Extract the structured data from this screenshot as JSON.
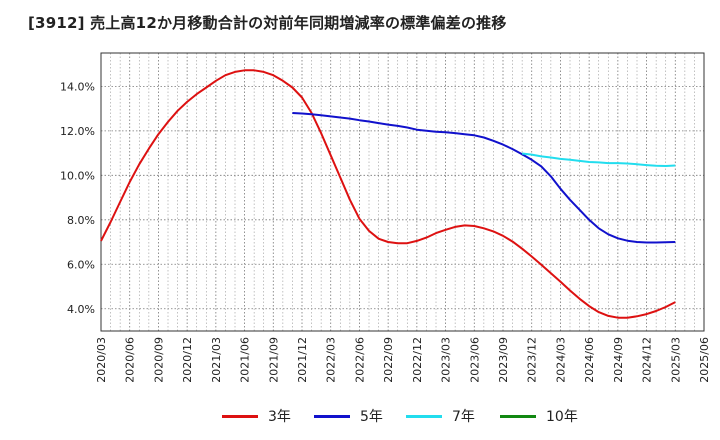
{
  "title": "[3912]  売上高12か月移動合計の対前年同期増減率の標準偏差の推移",
  "chart_data": {
    "type": "line",
    "title": "[3912]  売上高12か月移動合計の対前年同期増減率の標準偏差の推移",
    "xlabel": "",
    "ylabel": "",
    "x_ticks": [
      "2020/03",
      "2020/06",
      "2020/09",
      "2020/12",
      "2021/03",
      "2021/06",
      "2021/09",
      "2021/12",
      "2022/03",
      "2022/06",
      "2022/09",
      "2022/12",
      "2023/03",
      "2023/06",
      "2023/09",
      "2023/12",
      "2024/03",
      "2024/06",
      "2024/09",
      "2024/12",
      "2025/03",
      "2025/06"
    ],
    "y_ticks": [
      "4.0%",
      "6.0%",
      "8.0%",
      "10.0%",
      "12.0%",
      "14.0%"
    ],
    "ylim": [
      3.0,
      15.5
    ],
    "grid": true,
    "legend_position": "bottom",
    "series": [
      {
        "name": "3年",
        "color": "#dd1111",
        "x": [
          "2020/03",
          "2020/04",
          "2020/05",
          "2020/06",
          "2020/07",
          "2020/08",
          "2020/09",
          "2020/10",
          "2020/11",
          "2020/12",
          "2021/01",
          "2021/02",
          "2021/03",
          "2021/04",
          "2021/05",
          "2021/06",
          "2021/07",
          "2021/08",
          "2021/09",
          "2021/10",
          "2021/11",
          "2021/12",
          "2022/01",
          "2022/02",
          "2022/03",
          "2022/04",
          "2022/05",
          "2022/06",
          "2022/07",
          "2022/08",
          "2022/09",
          "2022/10",
          "2022/11",
          "2022/12",
          "2023/01",
          "2023/02",
          "2023/03",
          "2023/04",
          "2023/05",
          "2023/06",
          "2023/07",
          "2023/08",
          "2023/09",
          "2023/10",
          "2023/11",
          "2023/12",
          "2024/01",
          "2024/02",
          "2024/03",
          "2024/04",
          "2024/05",
          "2024/06",
          "2024/07",
          "2024/08",
          "2024/09",
          "2024/10",
          "2024/11",
          "2024/12",
          "2025/01",
          "2025/02",
          "2025/03"
        ],
        "values": [
          7.05,
          7.9,
          8.8,
          9.7,
          10.5,
          11.2,
          11.85,
          12.4,
          12.9,
          13.3,
          13.65,
          13.95,
          14.25,
          14.5,
          14.65,
          14.72,
          14.72,
          14.65,
          14.5,
          14.25,
          13.95,
          13.5,
          12.8,
          11.9,
          10.9,
          9.9,
          8.9,
          8.05,
          7.5,
          7.15,
          7.0,
          6.95,
          6.95,
          7.05,
          7.2,
          7.4,
          7.55,
          7.68,
          7.75,
          7.72,
          7.62,
          7.48,
          7.28,
          7.02,
          6.7,
          6.35,
          5.98,
          5.6,
          5.22,
          4.82,
          4.45,
          4.12,
          3.85,
          3.68,
          3.6,
          3.6,
          3.66,
          3.76,
          3.9,
          4.08,
          4.3
        ]
      },
      {
        "name": "5年",
        "color": "#1111cc",
        "x": [
          "2021/11",
          "2021/12",
          "2022/01",
          "2022/02",
          "2022/03",
          "2022/04",
          "2022/05",
          "2022/06",
          "2022/07",
          "2022/08",
          "2022/09",
          "2022/10",
          "2022/11",
          "2022/12",
          "2023/01",
          "2023/02",
          "2023/03",
          "2023/04",
          "2023/05",
          "2023/06",
          "2023/07",
          "2023/08",
          "2023/09",
          "2023/10",
          "2023/11",
          "2023/12",
          "2024/01",
          "2024/02",
          "2024/03",
          "2024/04",
          "2024/05",
          "2024/06",
          "2024/07",
          "2024/08",
          "2024/09",
          "2024/10",
          "2024/11",
          "2024/12",
          "2025/01",
          "2025/02",
          "2025/03"
        ],
        "values": [
          12.8,
          12.78,
          12.75,
          12.7,
          12.65,
          12.6,
          12.55,
          12.48,
          12.42,
          12.35,
          12.28,
          12.22,
          12.15,
          12.05,
          12.0,
          11.96,
          11.94,
          11.9,
          11.85,
          11.8,
          11.7,
          11.55,
          11.38,
          11.18,
          10.95,
          10.7,
          10.4,
          9.95,
          9.4,
          8.9,
          8.45,
          8.0,
          7.62,
          7.35,
          7.17,
          7.06,
          7.0,
          6.98,
          6.98,
          6.99,
          7.0
        ]
      },
      {
        "name": "7年",
        "color": "#22ddee",
        "x": [
          "2023/11",
          "2023/12",
          "2024/01",
          "2024/02",
          "2024/03",
          "2024/04",
          "2024/05",
          "2024/06",
          "2024/07",
          "2024/08",
          "2024/09",
          "2024/10",
          "2024/11",
          "2024/12",
          "2025/01",
          "2025/02",
          "2025/03"
        ],
        "values": [
          10.98,
          10.93,
          10.85,
          10.8,
          10.74,
          10.7,
          10.65,
          10.6,
          10.58,
          10.55,
          10.55,
          10.53,
          10.5,
          10.46,
          10.43,
          10.42,
          10.44
        ]
      },
      {
        "name": "10年",
        "color": "#118811",
        "x": [],
        "values": []
      }
    ]
  }
}
